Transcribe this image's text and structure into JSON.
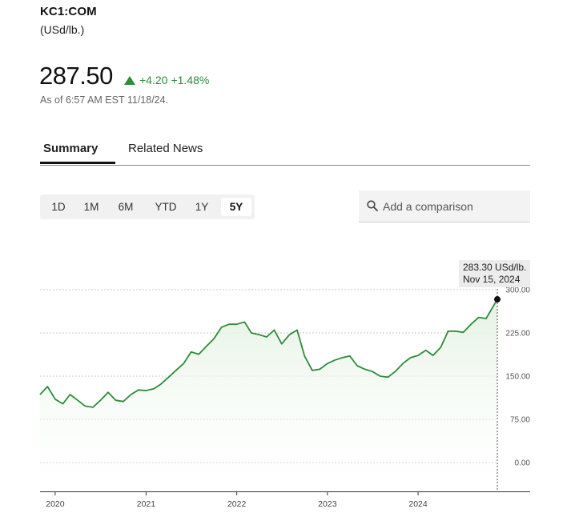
{
  "quote": {
    "ticker": "KC1:COM",
    "units": "(USd/lb.)",
    "price": "287.50",
    "change": "+4.20",
    "change_pct": "+1.48%",
    "as_of": "As of 6:57 AM EST 11/18/24.",
    "up_color": "#2e8b3a"
  },
  "tabs": [
    "Summary",
    "Related News"
  ],
  "ranges": [
    "1D",
    "1M",
    "6M",
    "YTD",
    "1Y",
    "5Y"
  ],
  "active_range": "5Y",
  "search": {
    "placeholder": "Add a comparison",
    "icon": "search-icon"
  },
  "tooltip": {
    "value": "283.30 USd/lb.",
    "date": "Nov 15, 2024"
  },
  "chart_data": {
    "type": "area",
    "series": [
      {
        "x": [
          "2019-11",
          "2019-12",
          "2020-01",
          "2020-02",
          "2020-03",
          "2020-04",
          "2020-05",
          "2020-06",
          "2020-07",
          "2020-08",
          "2020-09",
          "2020-10",
          "2020-11",
          "2020-12",
          "2021-01",
          "2021-02",
          "2021-03",
          "2021-04",
          "2021-05",
          "2021-06",
          "2021-07",
          "2021-08",
          "2021-09",
          "2021-10",
          "2021-11",
          "2021-12",
          "2022-01",
          "2022-02",
          "2022-03",
          "2022-04",
          "2022-05",
          "2022-06",
          "2022-07",
          "2022-08",
          "2022-09",
          "2022-10",
          "2022-11",
          "2022-12",
          "2023-01",
          "2023-02",
          "2023-03",
          "2023-04",
          "2023-05",
          "2023-06",
          "2023-07",
          "2023-08",
          "2023-09",
          "2023-10",
          "2023-11",
          "2023-12",
          "2024-01",
          "2024-02",
          "2024-03",
          "2024-04",
          "2024-05",
          "2024-06",
          "2024-07",
          "2024-08",
          "2024-09",
          "2024-10",
          "2024-11-15"
        ],
        "y": [
          118,
          132,
          110,
          102,
          118,
          108,
          98,
          96,
          108,
          122,
          108,
          106,
          118,
          126,
          125,
          128,
          136,
          148,
          160,
          172,
          192,
          188,
          202,
          215,
          235,
          240,
          240,
          244,
          225,
          222,
          218,
          230,
          206,
          222,
          230,
          185,
          160,
          162,
          172,
          178,
          182,
          185,
          168,
          162,
          158,
          150,
          148,
          158,
          172,
          182,
          186,
          195,
          186,
          200,
          228,
          228,
          226,
          240,
          252,
          250,
          283.3
        ]
      }
    ],
    "ylim": [
      0,
      300
    ],
    "yticks": [
      "300.00",
      "225.00",
      "150.00",
      "75.00",
      "0.00"
    ],
    "xticks": [
      "2020",
      "2021",
      "2022",
      "2023",
      "2024"
    ],
    "grid": true,
    "line_color": "#2e8b3a"
  }
}
